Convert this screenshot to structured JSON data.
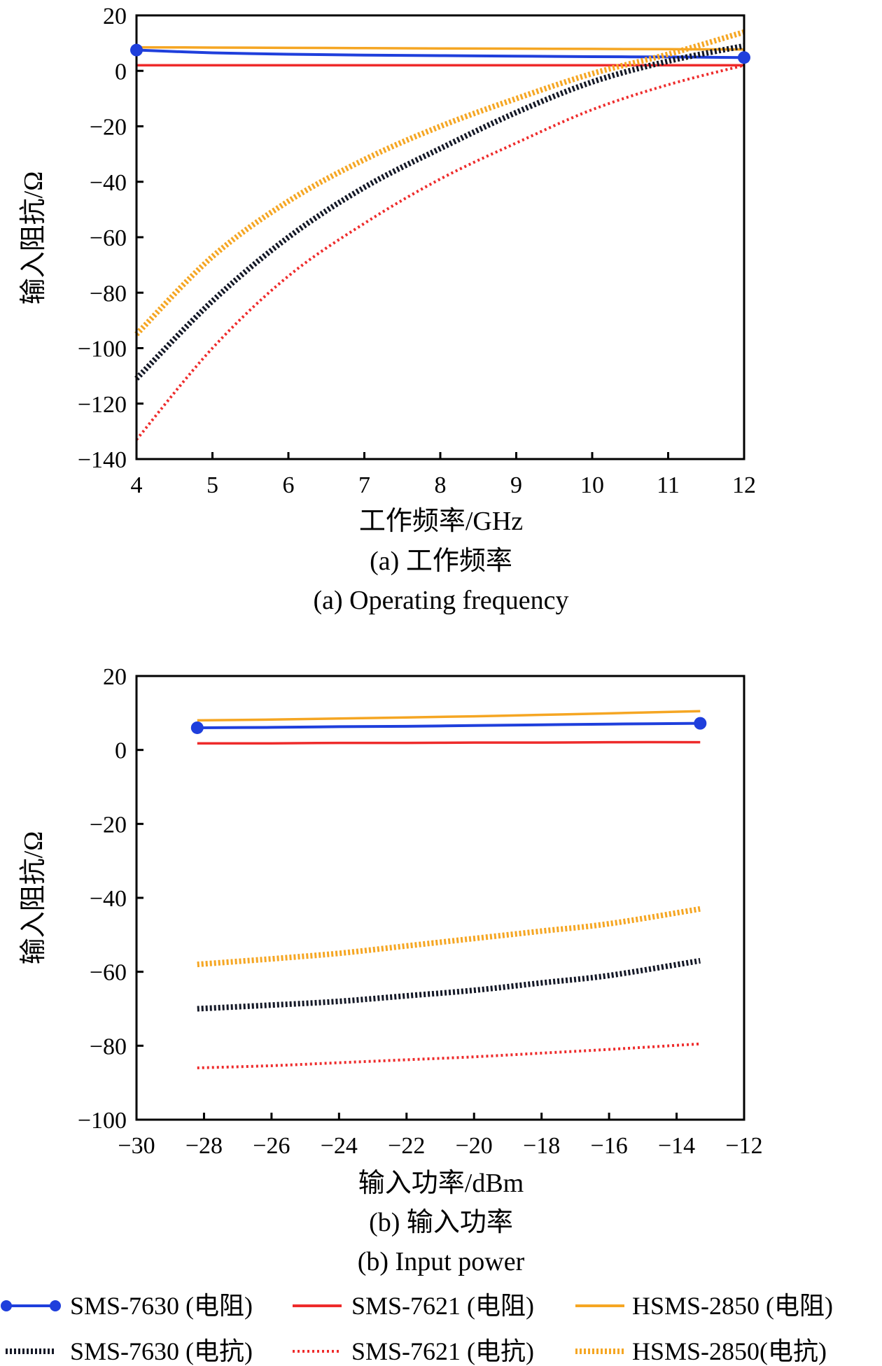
{
  "colors": {
    "sms7630": "#1f3fdc",
    "sms7621": "#ee2b2b",
    "hsms2850": "#f5a623",
    "sms7630_x": "#141826",
    "axis": "#000000"
  },
  "legend": {
    "items": [
      {
        "label": "SMS-7630 (电阻)",
        "color": "#1f3fdc",
        "style": "solid-marker"
      },
      {
        "label": "SMS-7621 (电阻)",
        "color": "#ee2b2b",
        "style": "solid"
      },
      {
        "label": "HSMS-2850 (电阻)",
        "color": "#f5a623",
        "style": "solid"
      },
      {
        "label": "SMS-7630 (电抗)",
        "color": "#141826",
        "style": "thick-dot"
      },
      {
        "label": "SMS-7621 (电抗)",
        "color": "#ee2b2b",
        "style": "dot"
      },
      {
        "label": "HSMS-2850(电抗)",
        "color": "#f5a623",
        "style": "thick-dot"
      }
    ]
  },
  "chart_data": [
    {
      "type": "line",
      "xlabel": "工作频率/GHz",
      "ylabel": "输入阻抗/Ω",
      "caption_cn": "(a) 工作频率",
      "caption_en": "(a) Operating frequency",
      "xlim": [
        4,
        12
      ],
      "ylim": [
        -140,
        20
      ],
      "xticks": [
        "4",
        "5",
        "6",
        "7",
        "8",
        "9",
        "10",
        "11",
        "12"
      ],
      "yticks": [
        "20",
        "0",
        "−20",
        "−40",
        "−60",
        "−80",
        "−100",
        "−120",
        "−140"
      ],
      "xtick_values": [
        4,
        5,
        6,
        7,
        8,
        9,
        10,
        11,
        12
      ],
      "ytick_values": [
        20,
        0,
        -20,
        -40,
        -60,
        -80,
        -100,
        -120,
        -140
      ],
      "x": [
        4,
        5,
        6,
        7,
        8,
        9,
        10,
        11,
        12
      ],
      "series": [
        {
          "name": "SMS-7630 (电阻)",
          "style": "solid-marker",
          "color": "#1f3fdc",
          "values": [
            7.5,
            6.5,
            6,
            5.7,
            5.5,
            5.3,
            5.1,
            5,
            4.8
          ]
        },
        {
          "name": "SMS-7621 (电阻)",
          "style": "solid",
          "color": "#ee2b2b",
          "values": [
            2,
            2,
            2,
            2,
            2,
            2,
            2,
            2,
            2
          ]
        },
        {
          "name": "HSMS-2850 (电阻)",
          "style": "solid",
          "color": "#f5a623",
          "values": [
            8.5,
            8.4,
            8.3,
            8.2,
            8.1,
            8,
            7.9,
            7.8,
            7.7
          ]
        },
        {
          "name": "SMS-7630 (电抗)",
          "style": "thick-dot",
          "color": "#141826",
          "values": [
            -111,
            -83,
            -60,
            -42,
            -28,
            -15,
            -4,
            3.5,
            9
          ]
        },
        {
          "name": "SMS-7621 (电抗)",
          "style": "dot",
          "color": "#ee2b2b",
          "values": [
            -133,
            -100,
            -74,
            -55,
            -39,
            -26,
            -14,
            -5,
            2
          ]
        },
        {
          "name": "HSMS-2850(电抗)",
          "style": "thick-dot",
          "color": "#f5a623",
          "values": [
            -95,
            -67,
            -47,
            -32,
            -20,
            -10,
            -1,
            6,
            14
          ]
        }
      ]
    },
    {
      "type": "line",
      "xlabel": "输入功率/dBm",
      "ylabel": "输入阻抗/Ω",
      "caption_cn": "(b) 输入功率",
      "caption_en": "(b) Input power",
      "xlim": [
        -30,
        -12
      ],
      "ylim": [
        -100,
        20
      ],
      "xticks": [
        "−30",
        "−28",
        "−26",
        "−24",
        "−22",
        "−20",
        "−18",
        "−16",
        "−14",
        "−12"
      ],
      "yticks": [
        "20",
        "0",
        "−20",
        "−40",
        "−60",
        "−80",
        "−100"
      ],
      "xtick_values": [
        -30,
        -28,
        -26,
        -24,
        -22,
        -20,
        -18,
        -16,
        -14,
        -12
      ],
      "ytick_values": [
        20,
        0,
        -20,
        -40,
        -60,
        -80,
        -100
      ],
      "x": [
        -28.2,
        -26,
        -24,
        -22,
        -20,
        -18,
        -16,
        -13.3
      ],
      "series": [
        {
          "name": "SMS-7630 (电阻)",
          "style": "solid-marker",
          "color": "#1f3fdc",
          "values": [
            6,
            6.1,
            6.3,
            6.4,
            6.6,
            6.8,
            7,
            7.2
          ]
        },
        {
          "name": "SMS-7621 (电阻)",
          "style": "solid",
          "color": "#ee2b2b",
          "values": [
            1.8,
            1.8,
            1.9,
            1.9,
            2,
            2,
            2.1,
            2.1
          ]
        },
        {
          "name": "HSMS-2850 (电阻)",
          "style": "solid",
          "color": "#f5a623",
          "values": [
            8,
            8.2,
            8.5,
            8.8,
            9.1,
            9.5,
            9.9,
            10.5
          ]
        },
        {
          "name": "SMS-7630 (电抗)",
          "style": "thick-dot",
          "color": "#141826",
          "values": [
            -70,
            -69,
            -68,
            -66.5,
            -65,
            -63,
            -61,
            -57
          ]
        },
        {
          "name": "SMS-7621 (电抗)",
          "style": "dot",
          "color": "#ee2b2b",
          "values": [
            -86,
            -85.4,
            -84.6,
            -83.8,
            -83,
            -82,
            -81,
            -79.5
          ]
        },
        {
          "name": "HSMS-2850(电抗)",
          "style": "thick-dot",
          "color": "#f5a623",
          "values": [
            -58,
            -56.5,
            -55,
            -53,
            -51,
            -49,
            -47,
            -43
          ]
        }
      ]
    }
  ]
}
